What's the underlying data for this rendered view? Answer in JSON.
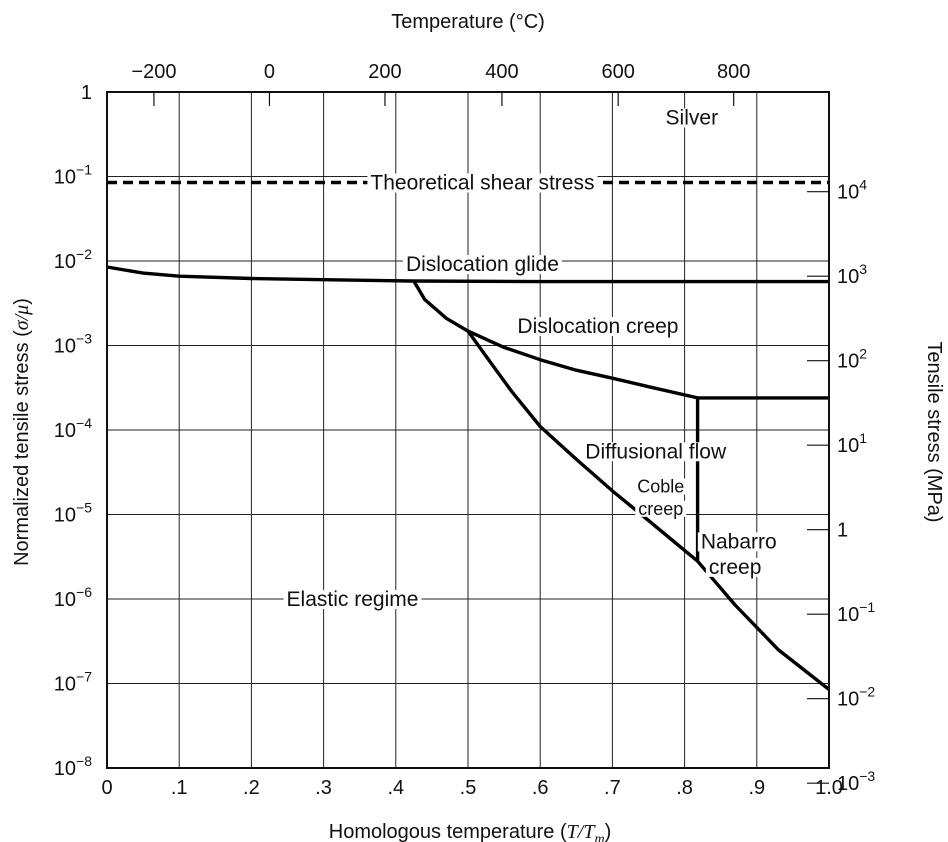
{
  "chart_data": {
    "type": "line",
    "title": "",
    "xlabel": "Homologous temperature (T/T_m)",
    "xlabel_parts": {
      "prefix": "Homologous temperature (",
      "T": "T",
      "slash": "/",
      "Tm": "T",
      "m": "m",
      "suffix": ")"
    },
    "ylabel": "Normalized tensile stress (σ/μ)",
    "ylabel_parts": {
      "prefix": "Normalized tensile stress (",
      "sigma": "σ",
      "slash": "/",
      "mu": "μ",
      "suffix": ")"
    },
    "top_xlabel": "Temperature (°C)",
    "right_ylabel": "Tensile stress (MPa)",
    "xlim": [
      0,
      1.0
    ],
    "ylim_exponent": [
      -8,
      0
    ],
    "y_scale": "log",
    "grid": true,
    "x_ticks": [
      {
        "value": 0,
        "label": "0"
      },
      {
        "value": 0.1,
        "label": ".1"
      },
      {
        "value": 0.2,
        "label": ".2"
      },
      {
        "value": 0.3,
        "label": ".3"
      },
      {
        "value": 0.4,
        "label": ".4"
      },
      {
        "value": 0.5,
        "label": ".5"
      },
      {
        "value": 0.6,
        "label": ".6"
      },
      {
        "value": 0.7,
        "label": ".7"
      },
      {
        "value": 0.8,
        "label": ".8"
      },
      {
        "value": 0.9,
        "label": ".9"
      },
      {
        "value": 1.0,
        "label": "1.0"
      }
    ],
    "y_ticks": [
      {
        "exp": 0,
        "label": "1",
        "sup": ""
      },
      {
        "exp": -1,
        "label": "10",
        "sup": "−1"
      },
      {
        "exp": -2,
        "label": "10",
        "sup": "−2"
      },
      {
        "exp": -3,
        "label": "10",
        "sup": "−3"
      },
      {
        "exp": -4,
        "label": "10",
        "sup": "−4"
      },
      {
        "exp": -5,
        "label": "10",
        "sup": "−5"
      },
      {
        "exp": -6,
        "label": "10",
        "sup": "−6"
      },
      {
        "exp": -7,
        "label": "10",
        "sup": "−7"
      },
      {
        "exp": -8,
        "label": "10",
        "sup": "−8"
      }
    ],
    "top_ticks": [
      {
        "value": 0.065,
        "label": "−200"
      },
      {
        "value": 0.225,
        "label": "0"
      },
      {
        "value": 0.385,
        "label": "200"
      },
      {
        "value": 0.547,
        "label": "400"
      },
      {
        "value": 0.708,
        "label": "600"
      },
      {
        "value": 0.868,
        "label": "800"
      }
    ],
    "right_ticks": [
      {
        "exp": -1.18,
        "label": "10",
        "sup": "4"
      },
      {
        "exp": -2.18,
        "label": "10",
        "sup": "3"
      },
      {
        "exp": -3.18,
        "label": "10",
        "sup": "2"
      },
      {
        "exp": -4.18,
        "label": "10",
        "sup": "1"
      },
      {
        "exp": -5.18,
        "label": "1",
        "sup": ""
      },
      {
        "exp": -6.18,
        "label": "10",
        "sup": "−1"
      },
      {
        "exp": -7.18,
        "label": "10",
        "sup": "−2"
      },
      {
        "exp": -8.18,
        "label": "10",
        "sup": "−3"
      }
    ],
    "series": [
      {
        "name": "theoretical-shear",
        "style": "dashed",
        "points": [
          [
            0,
            0.085
          ],
          [
            1.0,
            0.085
          ]
        ]
      },
      {
        "name": "glide-boundary",
        "style": "solid",
        "points": [
          [
            0,
            0.0085
          ],
          [
            0.05,
            0.0072
          ],
          [
            0.1,
            0.0066
          ],
          [
            0.2,
            0.0062
          ],
          [
            0.3,
            0.006
          ],
          [
            0.42,
            0.0058
          ],
          [
            0.6,
            0.0057
          ],
          [
            0.8,
            0.0057
          ],
          [
            1.0,
            0.0057
          ]
        ]
      },
      {
        "name": "dislocation-creep-upper",
        "style": "solid",
        "points": [
          [
            0.425,
            0.0058
          ],
          [
            0.44,
            0.0035
          ],
          [
            0.47,
            0.0021
          ],
          [
            0.5,
            0.00148
          ],
          [
            0.55,
            0.00095
          ],
          [
            0.6,
            0.00068
          ],
          [
            0.65,
            0.00051
          ],
          [
            0.7,
            0.00041
          ],
          [
            0.75,
            0.000325
          ],
          [
            0.818,
            0.00024
          ]
        ]
      },
      {
        "name": "diffusional-step",
        "style": "solid",
        "points": [
          [
            0.818,
            2.8e-06
          ],
          [
            0.818,
            0.00024
          ],
          [
            1.0,
            0.00024
          ]
        ]
      },
      {
        "name": "lower-boundary",
        "style": "solid",
        "points": [
          [
            0.5,
            0.00148
          ],
          [
            0.53,
            0.00065
          ],
          [
            0.56,
            0.00029
          ],
          [
            0.6,
            0.00011
          ],
          [
            0.65,
            4.5e-05
          ],
          [
            0.7,
            1.9e-05
          ],
          [
            0.75,
            8.5e-06
          ],
          [
            0.818,
            2.8e-06
          ],
          [
            0.87,
            8.5e-07
          ],
          [
            0.93,
            2.5e-07
          ],
          [
            1.0,
            8.5e-08
          ]
        ]
      }
    ],
    "annotations": [
      {
        "id": "silver",
        "text": "Silver",
        "x": 0.81,
        "y": 0.5
      },
      {
        "id": "theoretical",
        "text": "Theoretical shear stress",
        "x": 0.52,
        "y": 0.085
      },
      {
        "id": "glide",
        "text": "Dislocation glide",
        "x": 0.52,
        "y": 0.0092
      },
      {
        "id": "creep",
        "text": "Dislocation creep",
        "x": 0.68,
        "y": 0.0017
      },
      {
        "id": "diffusional",
        "text": "Diffusional flow",
        "x": 0.76,
        "y": 5.6e-05
      },
      {
        "id": "coble1",
        "text": "Coble",
        "x": 0.767,
        "y": 2.2e-05
      },
      {
        "id": "coble2",
        "text": "creep",
        "x": 0.767,
        "y": 1.2e-05
      },
      {
        "id": "nabarro1",
        "text": "Nabarro",
        "x": 0.875,
        "y": 4.8e-06
      },
      {
        "id": "nabarro2",
        "text": "creep",
        "x": 0.87,
        "y": 2.4e-06
      },
      {
        "id": "elastic",
        "text": "Elastic regime",
        "x": 0.34,
        "y": 1e-06
      }
    ]
  }
}
